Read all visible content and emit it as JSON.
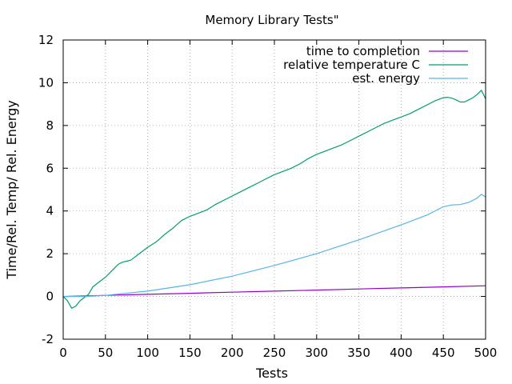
{
  "chart_data": {
    "type": "line",
    "title": "Memory Library Tests\"",
    "xlabel": "Tests",
    "ylabel": "Time/Rel. Temp/ Rel. Energy",
    "xlim": [
      0,
      500
    ],
    "ylim": [
      -2,
      12
    ],
    "xticks": [
      "0",
      "50",
      "100",
      "150",
      "200",
      "250",
      "300",
      "350",
      "400",
      "450",
      "500"
    ],
    "yticks": [
      "-2",
      "0",
      "2",
      "4",
      "6",
      "8",
      "10",
      "12"
    ],
    "grid": true,
    "legend_position": "top-right",
    "series": [
      {
        "name": "time to completion",
        "color": "#9400d3",
        "x": [
          0,
          50,
          100,
          150,
          200,
          250,
          300,
          350,
          400,
          450,
          500
        ],
        "y": [
          0,
          0.05,
          0.1,
          0.15,
          0.2,
          0.25,
          0.3,
          0.35,
          0.4,
          0.45,
          0.5
        ]
      },
      {
        "name": "relative temperature C",
        "color": "#009e73",
        "x": [
          0,
          5,
          10,
          15,
          20,
          30,
          35,
          40,
          50,
          60,
          65,
          70,
          75,
          80,
          90,
          100,
          110,
          120,
          130,
          140,
          150,
          160,
          170,
          180,
          190,
          200,
          210,
          220,
          230,
          240,
          250,
          260,
          270,
          280,
          290,
          300,
          310,
          320,
          330,
          340,
          350,
          360,
          370,
          380,
          390,
          400,
          410,
          420,
          430,
          440,
          450,
          455,
          460,
          465,
          470,
          475,
          480,
          485,
          490,
          495,
          500
        ],
        "y": [
          0,
          -0.2,
          -0.55,
          -0.45,
          -0.2,
          0.1,
          0.45,
          0.6,
          0.9,
          1.3,
          1.5,
          1.6,
          1.65,
          1.7,
          2.0,
          2.3,
          2.55,
          2.9,
          3.2,
          3.55,
          3.75,
          3.9,
          4.05,
          4.3,
          4.5,
          4.7,
          4.9,
          5.1,
          5.3,
          5.5,
          5.7,
          5.85,
          6.0,
          6.2,
          6.45,
          6.65,
          6.8,
          6.95,
          7.1,
          7.3,
          7.5,
          7.7,
          7.9,
          8.1,
          8.25,
          8.4,
          8.55,
          8.75,
          8.95,
          9.15,
          9.3,
          9.32,
          9.28,
          9.2,
          9.1,
          9.1,
          9.2,
          9.3,
          9.45,
          9.65,
          9.25
        ]
      },
      {
        "name": "est. energy",
        "color": "#56b4e9",
        "x": [
          0,
          25,
          50,
          100,
          150,
          200,
          250,
          300,
          350,
          400,
          430,
          450,
          460,
          470,
          480,
          490,
          495,
          500
        ],
        "y": [
          0,
          0,
          0.05,
          0.25,
          0.55,
          0.95,
          1.45,
          2.0,
          2.65,
          3.35,
          3.8,
          4.2,
          4.28,
          4.3,
          4.4,
          4.6,
          4.78,
          4.65
        ]
      }
    ]
  }
}
